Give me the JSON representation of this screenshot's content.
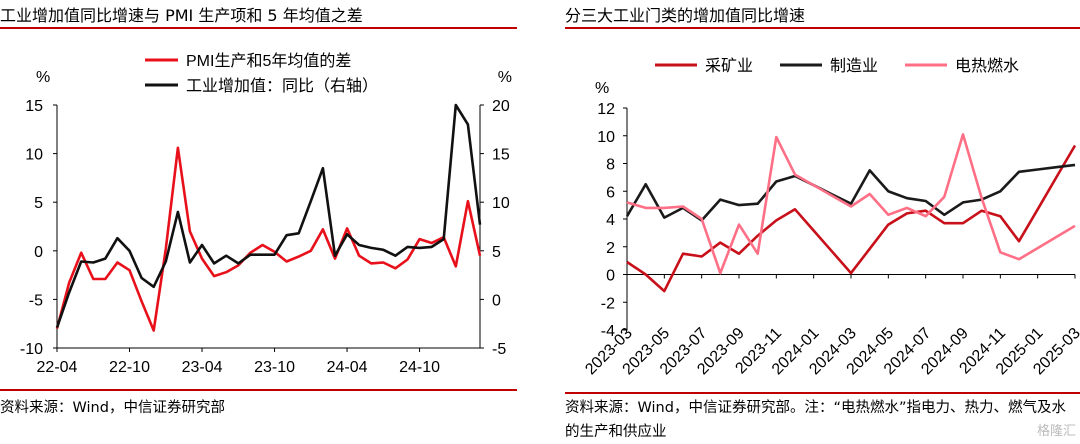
{
  "left": {
    "title": "工业增加值同比增速与 PMI 生产项和 5 年均值之差",
    "source": "资料来源：Wind，中信证券研究部",
    "chart_data": {
      "type": "line",
      "title": "工业增加值同比增速与 PMI 生产项和 5 年均值之差",
      "x_tick_labels": [
        "22-04",
        "22-10",
        "23-04",
        "23-10",
        "24-04",
        "24-10"
      ],
      "left_axis": {
        "unit": "%",
        "ylim": [
          -10,
          15
        ],
        "ticks": [
          -10,
          -5,
          0,
          5,
          10,
          15
        ]
      },
      "right_axis": {
        "unit": "%",
        "ylim": [
          -5,
          20
        ],
        "ticks": [
          -5,
          0,
          5,
          10,
          15,
          20
        ]
      },
      "legend_position": "top-center",
      "series": [
        {
          "name": "PMI生产和5年均值的差",
          "axis": "left",
          "color": "#e8101a",
          "values": [
            -8,
            -3.3,
            -0.2,
            -2.9,
            -2.9,
            -1.2,
            -2,
            -5.2,
            -8.2,
            0.2,
            10.6,
            2,
            -0.8,
            -2.6,
            -2.2,
            -1.5,
            -0.2,
            0.6,
            -0.1,
            -1.1,
            -0.6,
            0,
            2.2,
            -0.8,
            2.3,
            -0.5,
            -1.3,
            -1.2,
            -1.8,
            -0.9,
            1.2,
            0.8,
            1.4,
            -1.6,
            5.1,
            -0.5
          ]
        },
        {
          "name": "工业增加值：同比（右轴）",
          "axis": "right",
          "color": "#111111",
          "values": [
            -2.9,
            0.7,
            3.9,
            3.8,
            4.2,
            6.3,
            5.0,
            2.2,
            1.3,
            3.9,
            9.0,
            3.8,
            5.6,
            3.7,
            4.5,
            3.7,
            4.6,
            4.6,
            4.6,
            6.6,
            6.8,
            10.1,
            13.5,
            4.5,
            6.7,
            5.6,
            5.3,
            5.1,
            4.5,
            5.4,
            5.3,
            5.4,
            6.2,
            20.0,
            18.0,
            7.7
          ]
        }
      ]
    }
  },
  "right": {
    "title": "分三大工业门类的增加值同比增速",
    "source": "资料来源：Wind，中信证券研究部。注：“电热燃水”指电力、热力、燃气及水的生产和供应业",
    "chart_data": {
      "type": "line",
      "title": "分三大工业门类的增加值同比增速",
      "categories": [
        "2023-03",
        "2023-04",
        "2023-05",
        "2023-06",
        "2023-07",
        "2023-08",
        "2023-09",
        "2023-10",
        "2023-11",
        "2023-12",
        "2024-01",
        "2024-02",
        "2024-03",
        "2024-04",
        "2024-05",
        "2024-06",
        "2024-07",
        "2024-08",
        "2024-09",
        "2024-10",
        "2024-11",
        "2024-12",
        "2025-01",
        "2025-02",
        "2025-03"
      ],
      "x_tick_labels": [
        "2023-03",
        "2023-05",
        "2023-07",
        "2023-09",
        "2023-11",
        "2024-01",
        "2024-03",
        "2024-05",
        "2024-07",
        "2024-09",
        "2024-11",
        "2025-01",
        "2025-03"
      ],
      "y_axis": {
        "unit": "%",
        "ylim": [
          -4,
          12
        ],
        "ticks": [
          -4,
          -2,
          0,
          2,
          4,
          6,
          8,
          10,
          12
        ]
      },
      "legend_position": "top",
      "series": [
        {
          "name": "采矿业",
          "color": "#c8101a",
          "values": [
            0.9,
            0.0,
            -1.2,
            1.5,
            1.3,
            2.3,
            1.5,
            2.8,
            3.9,
            4.7,
            null,
            null,
            0.1,
            null,
            3.6,
            4.4,
            4.6,
            3.7,
            3.7,
            4.6,
            4.2,
            2.4,
            null,
            null,
            9.3
          ]
        },
        {
          "name": "制造业",
          "color": "#1a1a1a",
          "values": [
            4.2,
            6.5,
            4.1,
            4.8,
            3.9,
            5.4,
            5.0,
            5.1,
            6.7,
            7.1,
            null,
            null,
            5.1,
            7.5,
            6.0,
            5.5,
            5.3,
            4.3,
            5.2,
            5.4,
            6.0,
            7.4,
            null,
            null,
            7.9
          ]
        },
        {
          "name": "电热燃水",
          "color": "#ff6f86",
          "values": [
            5.2,
            4.8,
            4.8,
            4.9,
            4.0,
            0.1,
            3.6,
            1.5,
            9.9,
            7.2,
            null,
            null,
            4.9,
            5.8,
            4.3,
            4.8,
            4.2,
            5.6,
            10.1,
            5.5,
            1.6,
            1.1,
            null,
            null,
            3.5
          ]
        }
      ]
    }
  },
  "watermark": "格隆汇"
}
